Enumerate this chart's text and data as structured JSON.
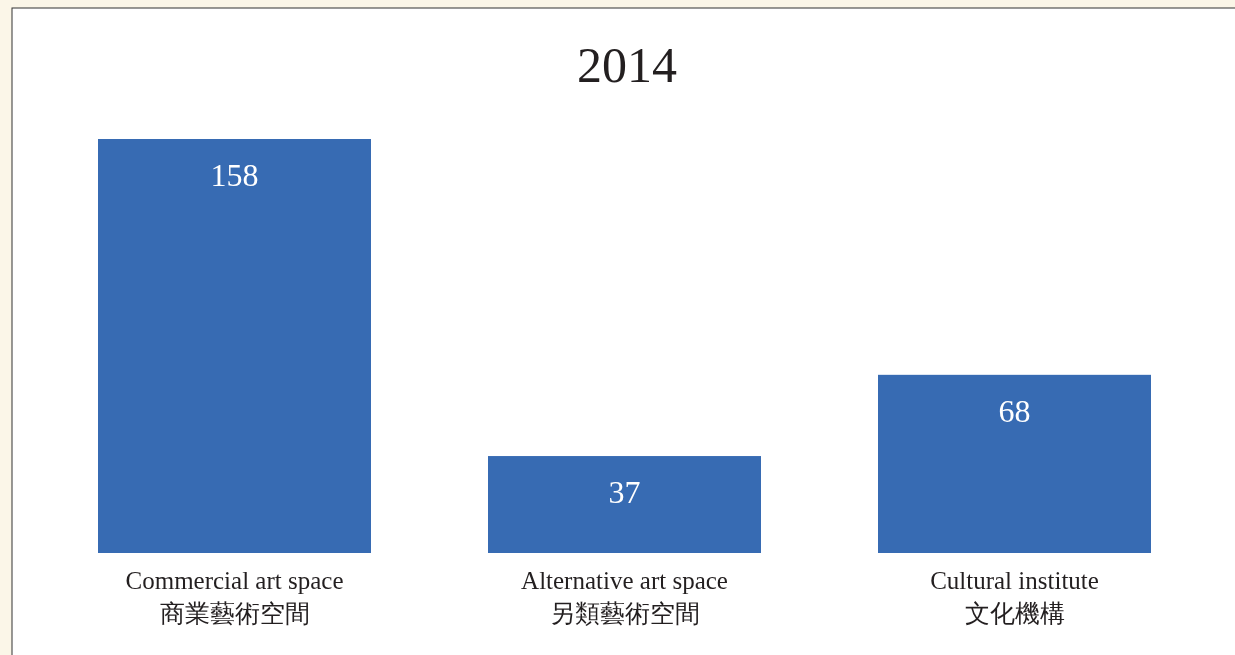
{
  "chart_data": {
    "type": "bar",
    "title": "2014",
    "categories": [
      "Commercial art space\n商業藝術空間",
      "Alternative art space\n另類藝術空間",
      "Cultural institute\n文化機構"
    ],
    "values": [
      158,
      37,
      68
    ],
    "color": "#376bb3",
    "data_labels": true
  }
}
